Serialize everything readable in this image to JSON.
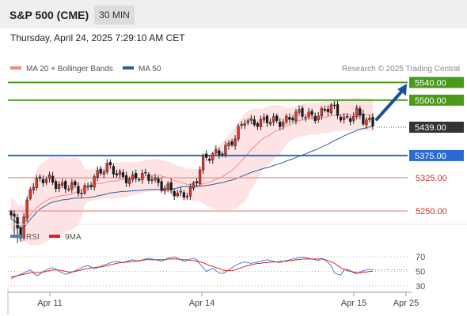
{
  "header": {
    "title": "S&P 500 (CME)",
    "timeframe": "30 MIN"
  },
  "timestamp": "Thursday, April 24, 2025 7:29:10 AM CET",
  "legend": {
    "ma20": {
      "label": "MA 20 + Bollinger Bands",
      "color": "#f08a8a"
    },
    "ma50": {
      "label": "MA 50",
      "color": "#2e5e9e"
    },
    "credit": "Research © 2025 Trading Central"
  },
  "rsi_legend": {
    "rsi": {
      "label": "RSI",
      "color": "#4a7fd4"
    },
    "ma": {
      "label": "9MA",
      "color": "#e02020"
    }
  },
  "chart_data": [
    {
      "type": "candlestick",
      "ylim": [
        5150,
        5570
      ],
      "x_ticks": [
        "Apr 11",
        "Apr 14",
        "Apr 15",
        "Apr 25"
      ],
      "levels": [
        {
          "value": 5540,
          "label": "5540.00",
          "kind": "resistance",
          "color": "#4a9a1a"
        },
        {
          "value": 5500,
          "label": "5500.00",
          "kind": "resistance",
          "color": "#4a9a1a"
        },
        {
          "value": 5439,
          "label": "5439.00",
          "kind": "last",
          "color": "#333333"
        },
        {
          "value": 5375,
          "label": "5375.00",
          "kind": "pivot",
          "color": "#2a6ad6"
        },
        {
          "value": 5325,
          "label": "5325.00",
          "kind": "support",
          "color": "#e05050"
        },
        {
          "value": 5250,
          "label": "5250.00",
          "kind": "support",
          "color": "#e05050"
        }
      ],
      "colors": {
        "up": "#e8352b",
        "down": "#1a1a1a",
        "band": "#fde0e0"
      }
    },
    {
      "type": "line",
      "title": "RSI",
      "ylim": [
        20,
        80
      ],
      "y_ticks": [
        "70",
        "50",
        "30"
      ],
      "series": [
        {
          "name": "RSI",
          "values": [
            40,
            42,
            44,
            46,
            48,
            50,
            52,
            48,
            44,
            46,
            50,
            52,
            54,
            55,
            53,
            50,
            48,
            46,
            47,
            49,
            51,
            53,
            55,
            57,
            58,
            56,
            54,
            55,
            57,
            59,
            60,
            62,
            63,
            64,
            63,
            62,
            64,
            65,
            66,
            65,
            64,
            66,
            67,
            68,
            67,
            66,
            65,
            64,
            66,
            68,
            69,
            70,
            68,
            66,
            64,
            65,
            67,
            68,
            66,
            60,
            55,
            50,
            52,
            54,
            51,
            48,
            47,
            49,
            52,
            55,
            58,
            60,
            62,
            63,
            62,
            61,
            62,
            63,
            64,
            65,
            66,
            65,
            64,
            63,
            62,
            64,
            65,
            66,
            67,
            68,
            69,
            70,
            69,
            68,
            67,
            66,
            65,
            68,
            66,
            62,
            58,
            48,
            46,
            45,
            52,
            53,
            51,
            48,
            47,
            49,
            51,
            52,
            53,
            52
          ]
        },
        {
          "name": "9MA",
          "values": [
            42,
            43,
            44,
            45,
            46,
            47,
            48,
            48,
            48,
            48,
            49,
            50,
            51,
            52,
            52,
            52,
            51,
            50,
            49,
            49,
            50,
            51,
            52,
            53,
            54,
            55,
            55,
            56,
            56,
            57,
            58,
            59,
            60,
            61,
            62,
            62,
            63,
            63,
            64,
            64,
            65,
            65,
            66,
            66,
            66,
            66,
            66,
            66,
            66,
            67,
            67,
            67,
            67,
            66,
            66,
            66,
            65,
            65,
            64,
            63,
            62,
            60,
            58,
            57,
            55,
            54,
            52,
            51,
            51,
            51,
            52,
            54,
            55,
            57,
            58,
            59,
            60,
            61,
            61,
            62,
            62,
            63,
            63,
            63,
            64,
            64,
            64,
            65,
            65,
            66,
            66,
            67,
            67,
            67,
            67,
            67,
            67,
            67,
            66,
            65,
            63,
            61,
            58,
            55,
            53,
            51,
            50,
            49,
            48,
            48,
            49,
            49,
            50,
            50
          ]
        }
      ]
    }
  ]
}
